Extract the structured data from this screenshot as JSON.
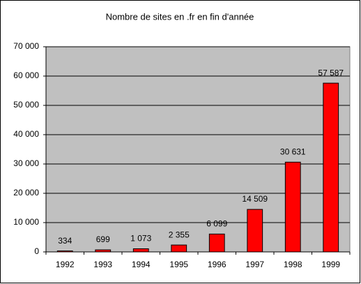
{
  "chart_data": {
    "type": "bar",
    "title": "Nombre de sites en .fr en fin d'année",
    "categories": [
      "1992",
      "1993",
      "1994",
      "1995",
      "1996",
      "1997",
      "1998",
      "1999"
    ],
    "values": [
      334,
      699,
      1073,
      2355,
      6099,
      14509,
      30631,
      57587
    ],
    "value_labels": [
      "334",
      "699",
      "1 073",
      "2 355",
      "6 099",
      "14 509",
      "30 631",
      "57 587"
    ],
    "color": "#ff0000",
    "ylim": [
      0,
      70000
    ],
    "yticks": [
      {
        "value": 0,
        "label": "0"
      },
      {
        "value": 10000,
        "label": "10 000"
      },
      {
        "value": 20000,
        "label": "20 000"
      },
      {
        "value": 30000,
        "label": "30 000"
      },
      {
        "value": 40000,
        "label": "40 000"
      },
      {
        "value": 50000,
        "label": "50 000"
      },
      {
        "value": 60000,
        "label": "60 000"
      },
      {
        "value": 70000,
        "label": "70 000"
      }
    ],
    "grid": true
  }
}
